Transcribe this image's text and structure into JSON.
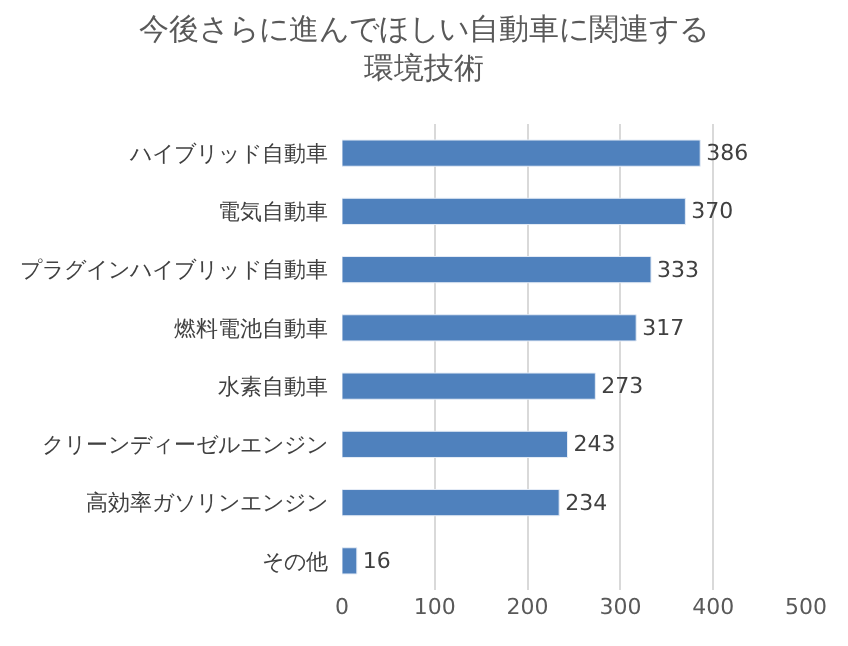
{
  "chart_data": {
    "type": "bar",
    "orientation": "horizontal",
    "title": "今後さらに進んでほしい自動車に関連する環境技術",
    "categories": [
      "ハイブリッド自動車",
      "電気自動車",
      "プラグインハイブリッド自動車",
      "燃料電池自動車",
      "水素自動車",
      "クリーンディーゼルエンジン",
      "高効率ガソリンエンジン",
      "その他"
    ],
    "values": [
      386,
      370,
      333,
      317,
      273,
      243,
      234,
      16
    ],
    "color": "#4f81bd",
    "xlim": [
      0,
      500
    ],
    "xticks": [
      0,
      100,
      200,
      300,
      400,
      500
    ],
    "grid": "x",
    "data_labels": true,
    "legend": false
  }
}
